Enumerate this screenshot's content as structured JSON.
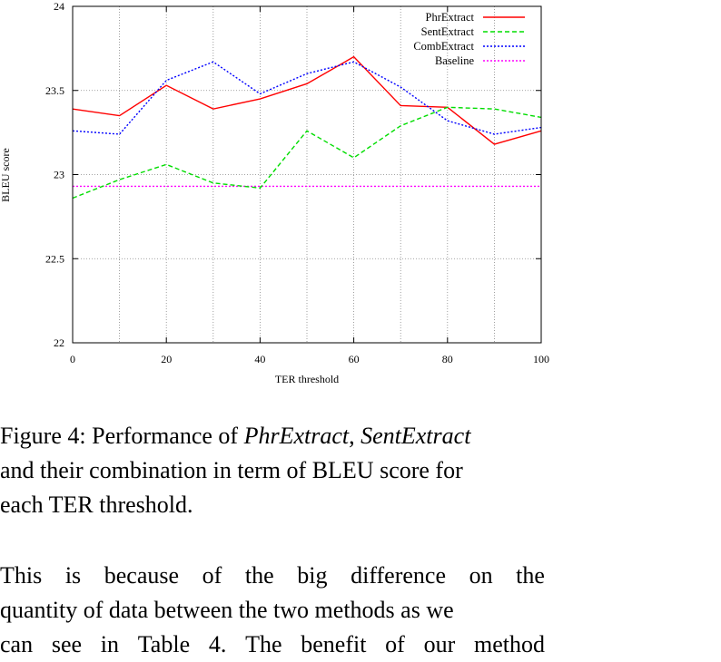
{
  "chart_data": {
    "type": "line",
    "x": [
      0,
      10,
      20,
      30,
      40,
      50,
      60,
      70,
      80,
      90,
      100
    ],
    "xlabel": "TER threshold",
    "ylabel": "BLEU score",
    "xlim": [
      0,
      100
    ],
    "ylim": [
      22,
      24
    ],
    "xticks": [
      "0",
      "20",
      "40",
      "60",
      "80",
      "100"
    ],
    "yticks": [
      "22",
      "22.5",
      "23",
      "23.5",
      "24"
    ],
    "grid": true,
    "legend_position": "top-right",
    "series": [
      {
        "name": "PhrExtract",
        "color": "#ff0000",
        "dash": "solid",
        "values": [
          23.39,
          23.35,
          23.53,
          23.39,
          23.45,
          23.54,
          23.7,
          23.41,
          23.4,
          23.18,
          23.26
        ]
      },
      {
        "name": "SentExtract",
        "color": "#00dd00",
        "dash": "dashed",
        "values": [
          22.86,
          22.97,
          23.06,
          22.95,
          22.92,
          23.26,
          23.1,
          23.29,
          23.4,
          23.39,
          23.34
        ]
      },
      {
        "name": "CombExtract",
        "color": "#0000ff",
        "dash": "dotted",
        "values": [
          23.26,
          23.24,
          23.56,
          23.67,
          23.48,
          23.6,
          23.67,
          23.52,
          23.32,
          23.24,
          23.28
        ]
      },
      {
        "name": "Baseline",
        "color": "#ff00ff",
        "dash": "dotted",
        "values": [
          22.93,
          22.93,
          22.93,
          22.93,
          22.93,
          22.93,
          22.93,
          22.93,
          22.93,
          22.93,
          22.93
        ]
      }
    ]
  },
  "caption": {
    "line1_a": "Figure 4: Performance of ",
    "line1_b": "PhrExtract",
    "line1_c": ", ",
    "line1_d": "SentExtract",
    "line2": "and their combination in term of BLEU score for",
    "line3": "each TER threshold."
  },
  "body": {
    "line1_words": [
      "This",
      "is",
      "because",
      "of",
      "the",
      "big",
      "difference",
      "on",
      "the"
    ],
    "line2": "quantity of data between the two methods as we",
    "line3_words": [
      "can",
      "see",
      "in",
      "Table",
      "4.",
      "The",
      "benefit",
      "of",
      "our",
      "method"
    ]
  }
}
